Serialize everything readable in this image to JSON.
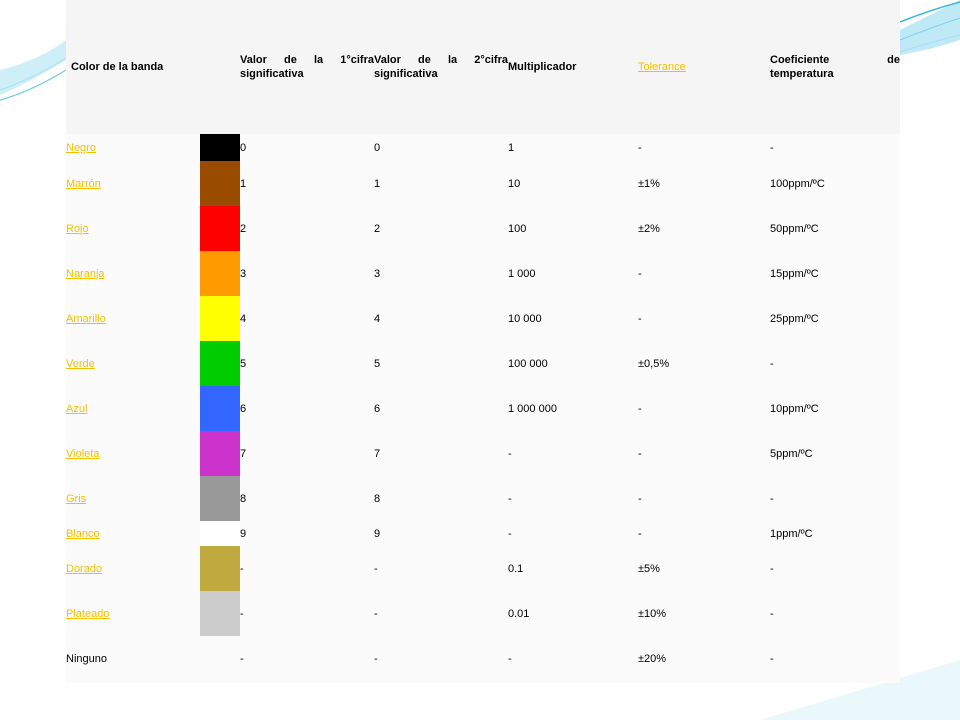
{
  "table": {
    "headers": [
      "Color de la banda",
      "Valor de la 1°cifra significativa",
      "Valor de la 2°cifra significativa",
      "Multiplicador",
      "Tolerance",
      "Coeficiente de temperatura"
    ],
    "rows": [
      {
        "name": "Negro",
        "color": "#000000",
        "v1": "0",
        "v2": "0",
        "mult": "1",
        "tol": "-",
        "coef": "-",
        "link": true
      },
      {
        "name": "Marrón",
        "color": "#994c00",
        "v1": "1",
        "v2": "1",
        "mult": "10",
        "tol": "±1%",
        "coef": "100ppm/ºC",
        "link": true
      },
      {
        "name": "Rojo",
        "color": "#ff0000",
        "v1": "2",
        "v2": "2",
        "mult": "100",
        "tol": "±2%",
        "coef": "50ppm/ºC",
        "link": true
      },
      {
        "name": "Naranja",
        "color": "#ff9900",
        "v1": "3",
        "v2": "3",
        "mult": "1 000",
        "tol": "-",
        "coef": "15ppm/ºC",
        "link": true
      },
      {
        "name": "Amarillo",
        "color": "#ffff00",
        "v1": "4",
        "v2": "4",
        "mult": "10 000",
        "tol": "-",
        "coef": "25ppm/ºC",
        "link": true
      },
      {
        "name": "Verde",
        "color": "#00cc00",
        "v1": "5",
        "v2": "5",
        "mult": "100 000",
        "tol": "±0,5%",
        "coef": "-",
        "link": true
      },
      {
        "name": "Azul",
        "color": "#3366ff",
        "v1": "6",
        "v2": "6",
        "mult": "1 000 000",
        "tol": "-",
        "coef": "10ppm/ºC",
        "link": true
      },
      {
        "name": "Violeta",
        "color": "#cc33cc",
        "v1": "7",
        "v2": "7",
        "mult": "-",
        "tol": "-",
        "coef": "5ppm/ºC",
        "link": true
      },
      {
        "name": "Gris",
        "color": "#999999",
        "v1": "8",
        "v2": "8",
        "mult": "-",
        "tol": "-",
        "coef": "-",
        "link": true
      },
      {
        "name": "Blanco",
        "color": "#ffffff",
        "v1": "9",
        "v2": "9",
        "mult": "-",
        "tol": "-",
        "coef": "1ppm/ºC",
        "link": true
      },
      {
        "name": "Dorado",
        "color": "#c0aa40",
        "v1": "-",
        "v2": "-",
        "mult": "0.1",
        "tol": "±5%",
        "coef": "-",
        "link": true
      },
      {
        "name": "Plateado",
        "color": "#cccccc",
        "v1": "-",
        "v2": "-",
        "mult": "0.01",
        "tol": "±10%",
        "coef": "-",
        "link": true
      },
      {
        "name": "Ninguno",
        "color": "",
        "v1": "-",
        "v2": "-",
        "mult": "-",
        "tol": "±20%",
        "coef": "-",
        "link": false
      }
    ]
  },
  "colors": {
    "link": "#f2c200",
    "accent": "#4fc3e8"
  }
}
